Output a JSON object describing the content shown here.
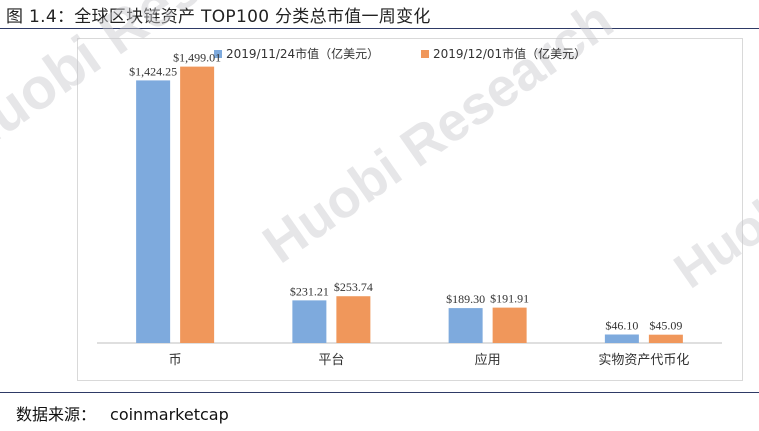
{
  "figure": {
    "title": "图 1.4：全球区块链资产 TOP100 分类总市值一周变化",
    "source_label": "数据来源：",
    "source_name": "coinmarketcap",
    "watermark": "Huobi Research"
  },
  "colors": {
    "series1": "#7eaadd",
    "series2": "#f0975b",
    "rule": "#2e3a66",
    "watermark": "#c8c8cc"
  },
  "chart_data": {
    "type": "bar",
    "categories": [
      "币",
      "平台",
      "应用",
      "实物资产代币化"
    ],
    "series": [
      {
        "name": "2019/11/24市值（亿美元）",
        "values": [
          1424.25,
          231.21,
          189.3,
          46.1
        ],
        "labels": [
          "$1,424.25",
          "$231.21",
          "$189.30",
          "$46.10"
        ]
      },
      {
        "name": "2019/12/01市值（亿美元）",
        "values": [
          1499.01,
          253.74,
          191.91,
          45.09
        ],
        "labels": [
          "$1,499.01",
          "$253.74",
          "$191.91",
          "$45.09"
        ]
      }
    ],
    "ylim": [
      0,
      1600
    ],
    "grid": false,
    "legend": "top-center",
    "title": "",
    "xlabel": "",
    "ylabel": ""
  }
}
